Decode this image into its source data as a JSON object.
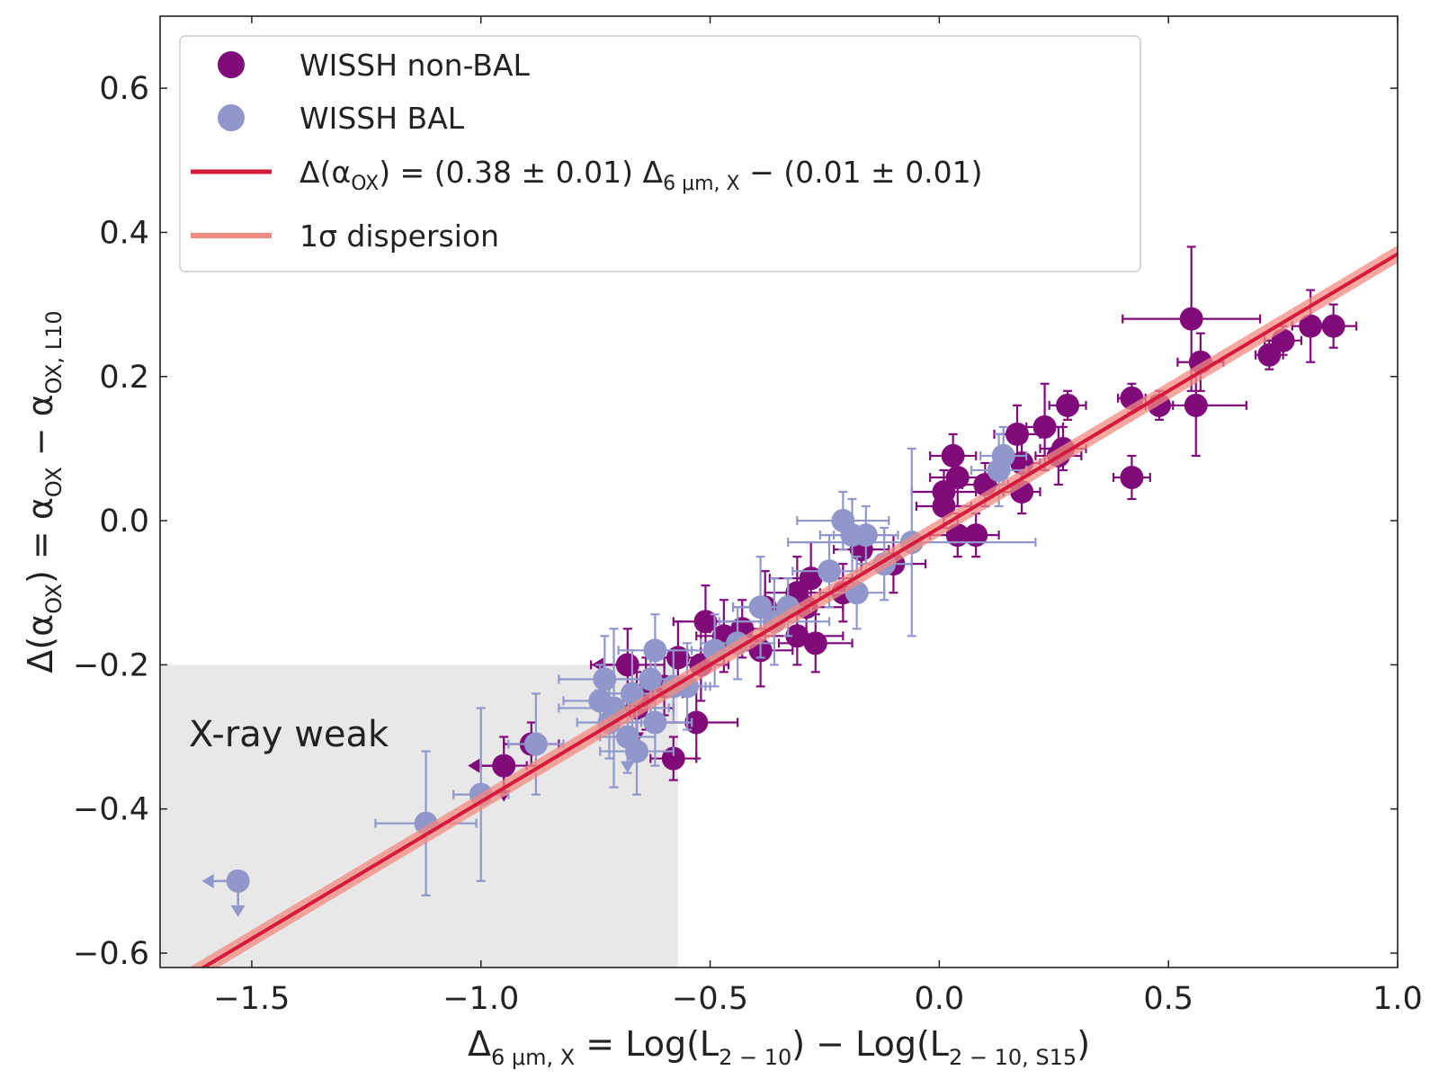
{
  "chart_data": {
    "type": "scatter",
    "xlabel": "Δ6 μm, X = Log(L2 − 10) − Log(L2 − 10, S15)",
    "ylabel": "Δ(αOX) = αOX − αOX, L10",
    "xlim": [
      -1.7,
      1.0
    ],
    "ylim": [
      -0.62,
      0.7
    ],
    "x_ticks": [
      "−1.5",
      "−1.0",
      "−0.5",
      "0.0",
      "0.5",
      "1.0"
    ],
    "y_ticks": [
      "−0.6",
      "−0.4",
      "−0.2",
      "0.0",
      "0.2",
      "0.4",
      "0.6"
    ],
    "x_tick_values": [
      -1.5,
      -1.0,
      -0.5,
      0.0,
      0.5,
      1.0
    ],
    "y_tick_values": [
      -0.6,
      -0.4,
      -0.2,
      0.0,
      0.2,
      0.4,
      0.6
    ],
    "legend": {
      "position": "top-left",
      "entries": [
        "WISSH non-BAL",
        "WISSH BAL",
        "Δ(αOX) = (0.38 ± 0.01) Δ6 μm, X − (0.01 ± 0.01)",
        "1σ dispersion"
      ]
    },
    "fit": {
      "slope": 0.38,
      "intercept": -0.01,
      "dispersion": 0.012,
      "color": "#d7193a",
      "band_color": "#f28a80"
    },
    "annotations": [
      {
        "text": "X-ray weak",
        "region": {
          "x": [
            -1.7,
            -0.57
          ],
          "y": [
            -0.62,
            -0.2
          ]
        }
      }
    ],
    "series": [
      {
        "name": "WISSH non-BAL",
        "color": "#800a7a",
        "points": [
          [
            0.55,
            0.28,
            0.15,
            0.1
          ],
          [
            0.57,
            0.22,
            0.05,
            0.04
          ],
          [
            0.56,
            0.16,
            0.11,
            0.07
          ],
          [
            0.48,
            0.16,
            0.03,
            0.02
          ],
          [
            0.42,
            0.17,
            0.03,
            0.02
          ],
          [
            0.42,
            0.06,
            0.04,
            0.03
          ],
          [
            0.72,
            0.23,
            0.03,
            0.02
          ],
          [
            0.75,
            0.25,
            0.04,
            0.02
          ],
          [
            0.81,
            0.27,
            0.04,
            0.05
          ],
          [
            0.86,
            0.27,
            0.05,
            0.03
          ],
          [
            0.28,
            0.16,
            0.04,
            0.02
          ],
          [
            0.27,
            0.1,
            0.05,
            0.03
          ],
          [
            0.26,
            0.09,
            0.05,
            0.04
          ],
          [
            0.23,
            0.13,
            0.04,
            0.06
          ],
          [
            0.17,
            0.12,
            0.05,
            0.04
          ],
          [
            0.18,
            0.08,
            0.04,
            0.03
          ],
          [
            0.18,
            0.04,
            0.04,
            0.03
          ],
          [
            0.1,
            0.05,
            0.05,
            0.03
          ],
          [
            0.03,
            0.09,
            0.05,
            0.03
          ],
          [
            0.01,
            0.04,
            0.07,
            0.03
          ],
          [
            0.04,
            0.06,
            0.06,
            0.04
          ],
          [
            0.01,
            0.02,
            0.06,
            0.03
          ],
          [
            0.04,
            -0.02,
            0.06,
            0.03
          ],
          [
            0.08,
            -0.02,
            0.05,
            0.03
          ],
          [
            -0.17,
            -0.04,
            0.06,
            0.03
          ],
          [
            -0.1,
            -0.06,
            0.07,
            0.04
          ],
          [
            -0.21,
            -0.1,
            0.05,
            0.04
          ],
          [
            -0.28,
            -0.08,
            0.09,
            0.05
          ],
          [
            -0.31,
            -0.1,
            0.07,
            0.05
          ],
          [
            -0.29,
            -0.12,
            0.08,
            0.05
          ],
          [
            -0.31,
            -0.16,
            0.1,
            0.04
          ],
          [
            -0.27,
            -0.17,
            0.08,
            0.04
          ],
          [
            -0.38,
            -0.12,
            0.07,
            0.05
          ],
          [
            -0.43,
            -0.15,
            0.07,
            0.04
          ],
          [
            -0.47,
            -0.16,
            0.06,
            0.05
          ],
          [
            -0.51,
            -0.14,
            0.07,
            0.05
          ],
          [
            -0.52,
            -0.2,
            0.06,
            0.05
          ],
          [
            -0.39,
            -0.18,
            0.07,
            0.05
          ],
          [
            -0.57,
            -0.19,
            0.06,
            0.05
          ],
          [
            -0.68,
            -0.2,
            0.08,
            0.05
          ],
          [
            -0.64,
            -0.24,
            0.08,
            0.05
          ],
          [
            -0.66,
            -0.26,
            0.08,
            0.05
          ],
          [
            -0.6,
            -0.23,
            0.05,
            0.04
          ],
          [
            -0.58,
            -0.33,
            0.05,
            0.03
          ],
          [
            -0.53,
            -0.28,
            0.09,
            0.05
          ],
          [
            -0.89,
            -0.31,
            0.06,
            0.03
          ],
          [
            -0.95,
            -0.34,
            0.05,
            0.04
          ]
        ],
        "limits": [
          {
            "x": -0.68,
            "y": -0.2,
            "dirs": [
              "left"
            ]
          },
          {
            "x": -0.95,
            "y": -0.34,
            "dirs": [
              "left",
              "down"
            ]
          },
          {
            "x": -0.66,
            "y": -0.26,
            "dirs": [
              "down"
            ]
          }
        ]
      },
      {
        "name": "WISSH BAL",
        "color": "#8f97cb",
        "points": [
          [
            0.14,
            0.09,
            0.05,
            0.04
          ],
          [
            0.13,
            0.07,
            0.06,
            0.05
          ],
          [
            -0.21,
            0.0,
            0.1,
            0.04
          ],
          [
            -0.19,
            -0.02,
            0.07,
            0.05
          ],
          [
            -0.16,
            -0.02,
            0.07,
            0.04
          ],
          [
            -0.12,
            -0.06,
            0.06,
            0.05
          ],
          [
            -0.06,
            -0.03,
            0.27,
            0.13
          ],
          [
            -0.24,
            -0.07,
            0.08,
            0.05
          ],
          [
            -0.18,
            -0.1,
            0.06,
            0.05
          ],
          [
            -0.39,
            -0.12,
            0.06,
            0.07
          ],
          [
            -0.36,
            -0.14,
            0.12,
            0.06
          ],
          [
            -0.33,
            -0.12,
            0.05,
            0.04
          ],
          [
            -0.44,
            -0.17,
            0.08,
            0.05
          ],
          [
            -0.49,
            -0.18,
            0.06,
            0.05
          ],
          [
            -0.62,
            -0.18,
            0.08,
            0.05
          ],
          [
            -0.55,
            -0.23,
            0.05,
            0.06
          ],
          [
            -0.63,
            -0.22,
            0.08,
            0.05
          ],
          [
            -0.58,
            -0.23,
            0.07,
            0.05
          ],
          [
            -0.73,
            -0.22,
            0.1,
            0.06
          ],
          [
            -0.67,
            -0.24,
            0.08,
            0.06
          ],
          [
            -0.72,
            -0.28,
            0.07,
            0.05
          ],
          [
            -0.71,
            -0.26,
            0.12,
            0.11
          ],
          [
            -0.68,
            -0.3,
            0.06,
            0.05
          ],
          [
            -0.66,
            -0.32,
            0.08,
            0.06
          ],
          [
            -0.62,
            -0.28,
            0.08,
            0.06
          ],
          [
            -0.74,
            -0.25,
            0.08,
            0.05
          ],
          [
            -0.88,
            -0.31,
            0.06,
            0.07
          ],
          [
            -1.0,
            -0.38,
            0.06,
            0.12
          ],
          [
            -1.12,
            -0.42,
            0.11,
            0.1
          ],
          [
            -1.53,
            -0.5,
            0.0,
            0.0
          ]
        ],
        "limits": [
          {
            "x": -1.53,
            "y": -0.5,
            "dirs": [
              "left",
              "down"
            ]
          },
          {
            "x": -0.68,
            "y": -0.3,
            "dirs": [
              "down"
            ]
          }
        ]
      }
    ]
  }
}
